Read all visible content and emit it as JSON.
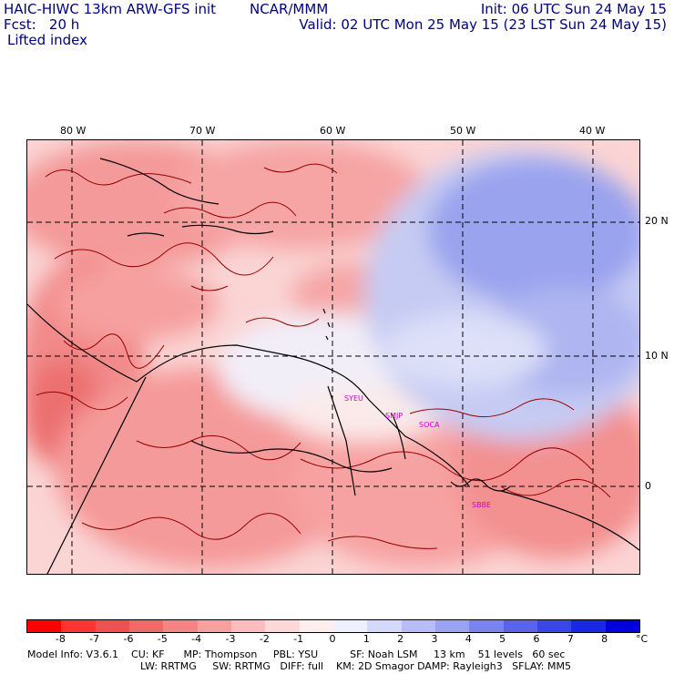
{
  "header": {
    "model_title": "HAIC-HIWC 13km ARW-GFS init",
    "org": "NCAR/MMM",
    "init": "Init: 06 UTC Sun 24 May 15",
    "fcst": "Fcst:   20 h",
    "valid": "Valid: 02 UTC Mon 25 May 15 (23 LST Sun 24 May 15)",
    "field": "Lifted index"
  },
  "map": {
    "lon_labels": [
      "80 W",
      "70 W",
      "60 W",
      "50 W",
      "40 W"
    ],
    "lat_labels": [
      "20 N",
      "10 N",
      "0"
    ],
    "stations": [
      "SYEU",
      "SMJP",
      "SOCA",
      "SBBE"
    ],
    "colors": {
      "coast": "#000000",
      "contour": "#990000",
      "station": "#cc00cc"
    }
  },
  "legend": {
    "unit": "°C",
    "labels": [
      "-8",
      "-7",
      "-6",
      "-5",
      "-4",
      "-3",
      "-2",
      "-1",
      "0",
      "1",
      "2",
      "3",
      "4",
      "5",
      "6",
      "7",
      "8"
    ],
    "colors": [
      "#ff0000",
      "#ff3333",
      "#f05050",
      "#f06a6a",
      "#f58585",
      "#f7a0a0",
      "#fbbdbd",
      "#fdd8d8",
      "#ffeeee",
      "#eef0ff",
      "#d4d8fa",
      "#b8bef5",
      "#9aa2f2",
      "#7a84ee",
      "#5a64ea",
      "#3a46e8",
      "#1a28e6",
      "#0000dd"
    ]
  },
  "footer": {
    "line1": "Model Info: V3.6.1    CU: KF      MP: Thompson     PBL: YSU          SF: Noah LSM     13 km    51 levels   60 sec",
    "line2": "LW: RRTMG     SW: RRTMG   DIFF: full    KM: 2D Smagor DAMP: Rayleigh3   SFLAY: MM5"
  }
}
